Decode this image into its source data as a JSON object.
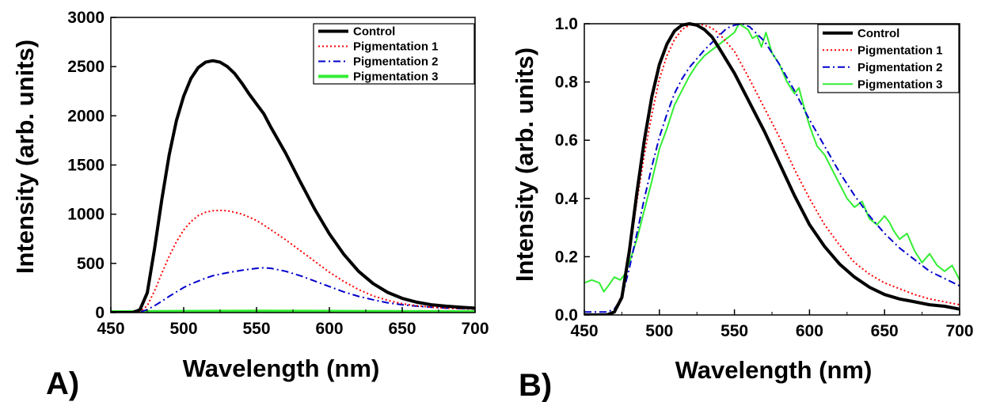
{
  "chart_data": [
    {
      "type": "line",
      "panel_label": "A)",
      "xlabel": "Wavelength (nm)",
      "ylabel": "Intensity (arb. units)",
      "xlim": [
        450,
        700
      ],
      "ylim": [
        0,
        3000
      ],
      "xticks": [
        450,
        500,
        550,
        600,
        650,
        700
      ],
      "yticks": [
        0,
        500,
        1000,
        1500,
        2000,
        2500,
        3000
      ],
      "legend_position": "top-right",
      "grid": false,
      "series": [
        {
          "name": "Control",
          "color": "#000000",
          "dash": "solid",
          "width": 4,
          "x": [
            450,
            460,
            465,
            470,
            475,
            480,
            485,
            490,
            495,
            500,
            505,
            510,
            515,
            520,
            525,
            530,
            535,
            540,
            545,
            550,
            555,
            560,
            570,
            580,
            590,
            600,
            610,
            620,
            630,
            640,
            650,
            660,
            670,
            680,
            690,
            700
          ],
          "y": [
            0,
            0,
            0,
            30,
            200,
            650,
            1150,
            1600,
            1950,
            2200,
            2380,
            2490,
            2545,
            2560,
            2545,
            2500,
            2430,
            2330,
            2220,
            2120,
            2020,
            1880,
            1620,
            1330,
            1050,
            800,
            590,
            420,
            295,
            205,
            145,
            105,
            80,
            65,
            55,
            45
          ]
        },
        {
          "name": "Pigmentation 1",
          "color": "#ff0000",
          "dash": "dotted",
          "width": 2,
          "x": [
            450,
            465,
            470,
            475,
            480,
            485,
            490,
            495,
            500,
            505,
            510,
            515,
            520,
            525,
            530,
            535,
            540,
            545,
            550,
            555,
            560,
            570,
            580,
            590,
            600,
            610,
            620,
            630,
            640,
            650,
            660,
            670,
            680,
            690,
            700
          ],
          "y": [
            0,
            0,
            10,
            70,
            220,
            400,
            570,
            720,
            840,
            925,
            985,
            1020,
            1035,
            1038,
            1035,
            1020,
            1000,
            970,
            935,
            890,
            840,
            740,
            630,
            520,
            410,
            315,
            235,
            170,
            125,
            90,
            70,
            55,
            45,
            40,
            35
          ]
        },
        {
          "name": "Pigmentation 2",
          "color": "#0000cc",
          "dash": "dashdot",
          "width": 2,
          "x": [
            450,
            465,
            470,
            475,
            480,
            485,
            490,
            495,
            500,
            505,
            510,
            515,
            520,
            530,
            540,
            550,
            555,
            560,
            570,
            580,
            590,
            600,
            610,
            620,
            630,
            640,
            650,
            660,
            670,
            680,
            690,
            700
          ],
          "y": [
            0,
            0,
            5,
            30,
            70,
            115,
            165,
            210,
            255,
            290,
            320,
            350,
            375,
            405,
            430,
            450,
            455,
            450,
            420,
            375,
            320,
            265,
            210,
            165,
            130,
            100,
            80,
            65,
            55,
            45,
            40,
            35
          ]
        },
        {
          "name": "Pigmentation 3",
          "color": "#33ee33",
          "dash": "solid",
          "width": 4,
          "x": [
            450,
            500,
            550,
            600,
            650,
            700
          ],
          "y": [
            8,
            12,
            14,
            12,
            10,
            8
          ]
        }
      ]
    },
    {
      "type": "line",
      "panel_label": "B)",
      "xlabel": "Wavelength (nm)",
      "ylabel": "Intensity (arb. units)",
      "xlim": [
        450,
        700
      ],
      "ylim": [
        0,
        1.0
      ],
      "xticks": [
        450,
        500,
        550,
        600,
        650,
        700
      ],
      "yticks": [
        "0.0",
        "0.2",
        "0.4",
        "0.6",
        "0.8",
        "1.0"
      ],
      "legend_position": "top-right",
      "grid": false,
      "series": [
        {
          "name": "Control",
          "color": "#000000",
          "dash": "solid",
          "width": 4,
          "x": [
            450,
            465,
            470,
            475,
            480,
            485,
            490,
            495,
            500,
            505,
            510,
            515,
            520,
            525,
            530,
            535,
            540,
            550,
            560,
            570,
            580,
            590,
            600,
            610,
            620,
            630,
            640,
            650,
            660,
            670,
            680,
            690,
            700
          ],
          "y": [
            0,
            0,
            0.01,
            0.06,
            0.22,
            0.42,
            0.6,
            0.75,
            0.86,
            0.93,
            0.975,
            0.995,
            1.0,
            0.995,
            0.98,
            0.955,
            0.915,
            0.83,
            0.73,
            0.63,
            0.52,
            0.41,
            0.31,
            0.235,
            0.175,
            0.13,
            0.095,
            0.07,
            0.055,
            0.045,
            0.035,
            0.03,
            0.02
          ]
        },
        {
          "name": "Pigmentation 1",
          "color": "#ff0000",
          "dash": "dotted",
          "width": 2,
          "x": [
            450,
            465,
            470,
            475,
            480,
            485,
            490,
            495,
            500,
            505,
            510,
            515,
            520,
            525,
            530,
            535,
            540,
            550,
            560,
            570,
            580,
            590,
            600,
            610,
            620,
            630,
            640,
            650,
            660,
            670,
            680,
            690,
            700
          ],
          "y": [
            0,
            0,
            0.01,
            0.07,
            0.21,
            0.39,
            0.55,
            0.69,
            0.81,
            0.89,
            0.945,
            0.98,
            0.995,
            1.0,
            0.995,
            0.985,
            0.965,
            0.905,
            0.81,
            0.71,
            0.61,
            0.5,
            0.4,
            0.31,
            0.24,
            0.18,
            0.14,
            0.11,
            0.09,
            0.07,
            0.055,
            0.045,
            0.035
          ]
        },
        {
          "name": "Pigmentation 2",
          "color": "#0000cc",
          "dash": "dashdot",
          "width": 2,
          "x": [
            450,
            465,
            470,
            475,
            480,
            485,
            490,
            495,
            500,
            505,
            510,
            515,
            520,
            530,
            540,
            545,
            550,
            555,
            560,
            570,
            580,
            590,
            600,
            610,
            620,
            630,
            640,
            650,
            660,
            670,
            680,
            690,
            700
          ],
          "y": [
            0.01,
            0.01,
            0.02,
            0.06,
            0.16,
            0.28,
            0.4,
            0.51,
            0.61,
            0.69,
            0.76,
            0.81,
            0.85,
            0.91,
            0.96,
            0.985,
            0.995,
            1.0,
            0.99,
            0.94,
            0.86,
            0.77,
            0.67,
            0.58,
            0.49,
            0.41,
            0.34,
            0.28,
            0.23,
            0.19,
            0.15,
            0.125,
            0.1
          ]
        },
        {
          "name": "Pigmentation 3",
          "color": "#33ee33",
          "dash": "solid",
          "width": 2,
          "x": [
            450,
            455,
            460,
            463,
            466,
            470,
            474,
            477,
            480,
            485,
            490,
            495,
            500,
            505,
            510,
            515,
            520,
            525,
            530,
            535,
            540,
            545,
            550,
            553,
            556,
            559,
            562,
            565,
            568,
            571,
            575,
            580,
            585,
            590,
            593,
            596,
            600,
            605,
            610,
            615,
            620,
            625,
            630,
            635,
            640,
            645,
            650,
            653,
            656,
            660,
            665,
            670,
            675,
            680,
            685,
            690,
            695,
            700
          ],
          "y": [
            0.11,
            0.12,
            0.11,
            0.08,
            0.1,
            0.13,
            0.12,
            0.14,
            0.18,
            0.26,
            0.36,
            0.46,
            0.57,
            0.64,
            0.72,
            0.77,
            0.82,
            0.86,
            0.89,
            0.91,
            0.93,
            0.95,
            0.97,
            1.0,
            0.99,
            0.98,
            0.95,
            0.96,
            0.92,
            0.97,
            0.9,
            0.86,
            0.8,
            0.76,
            0.78,
            0.72,
            0.65,
            0.58,
            0.55,
            0.5,
            0.45,
            0.4,
            0.37,
            0.39,
            0.33,
            0.31,
            0.34,
            0.32,
            0.29,
            0.26,
            0.28,
            0.22,
            0.18,
            0.21,
            0.17,
            0.15,
            0.17,
            0.12
          ]
        }
      ]
    }
  ]
}
